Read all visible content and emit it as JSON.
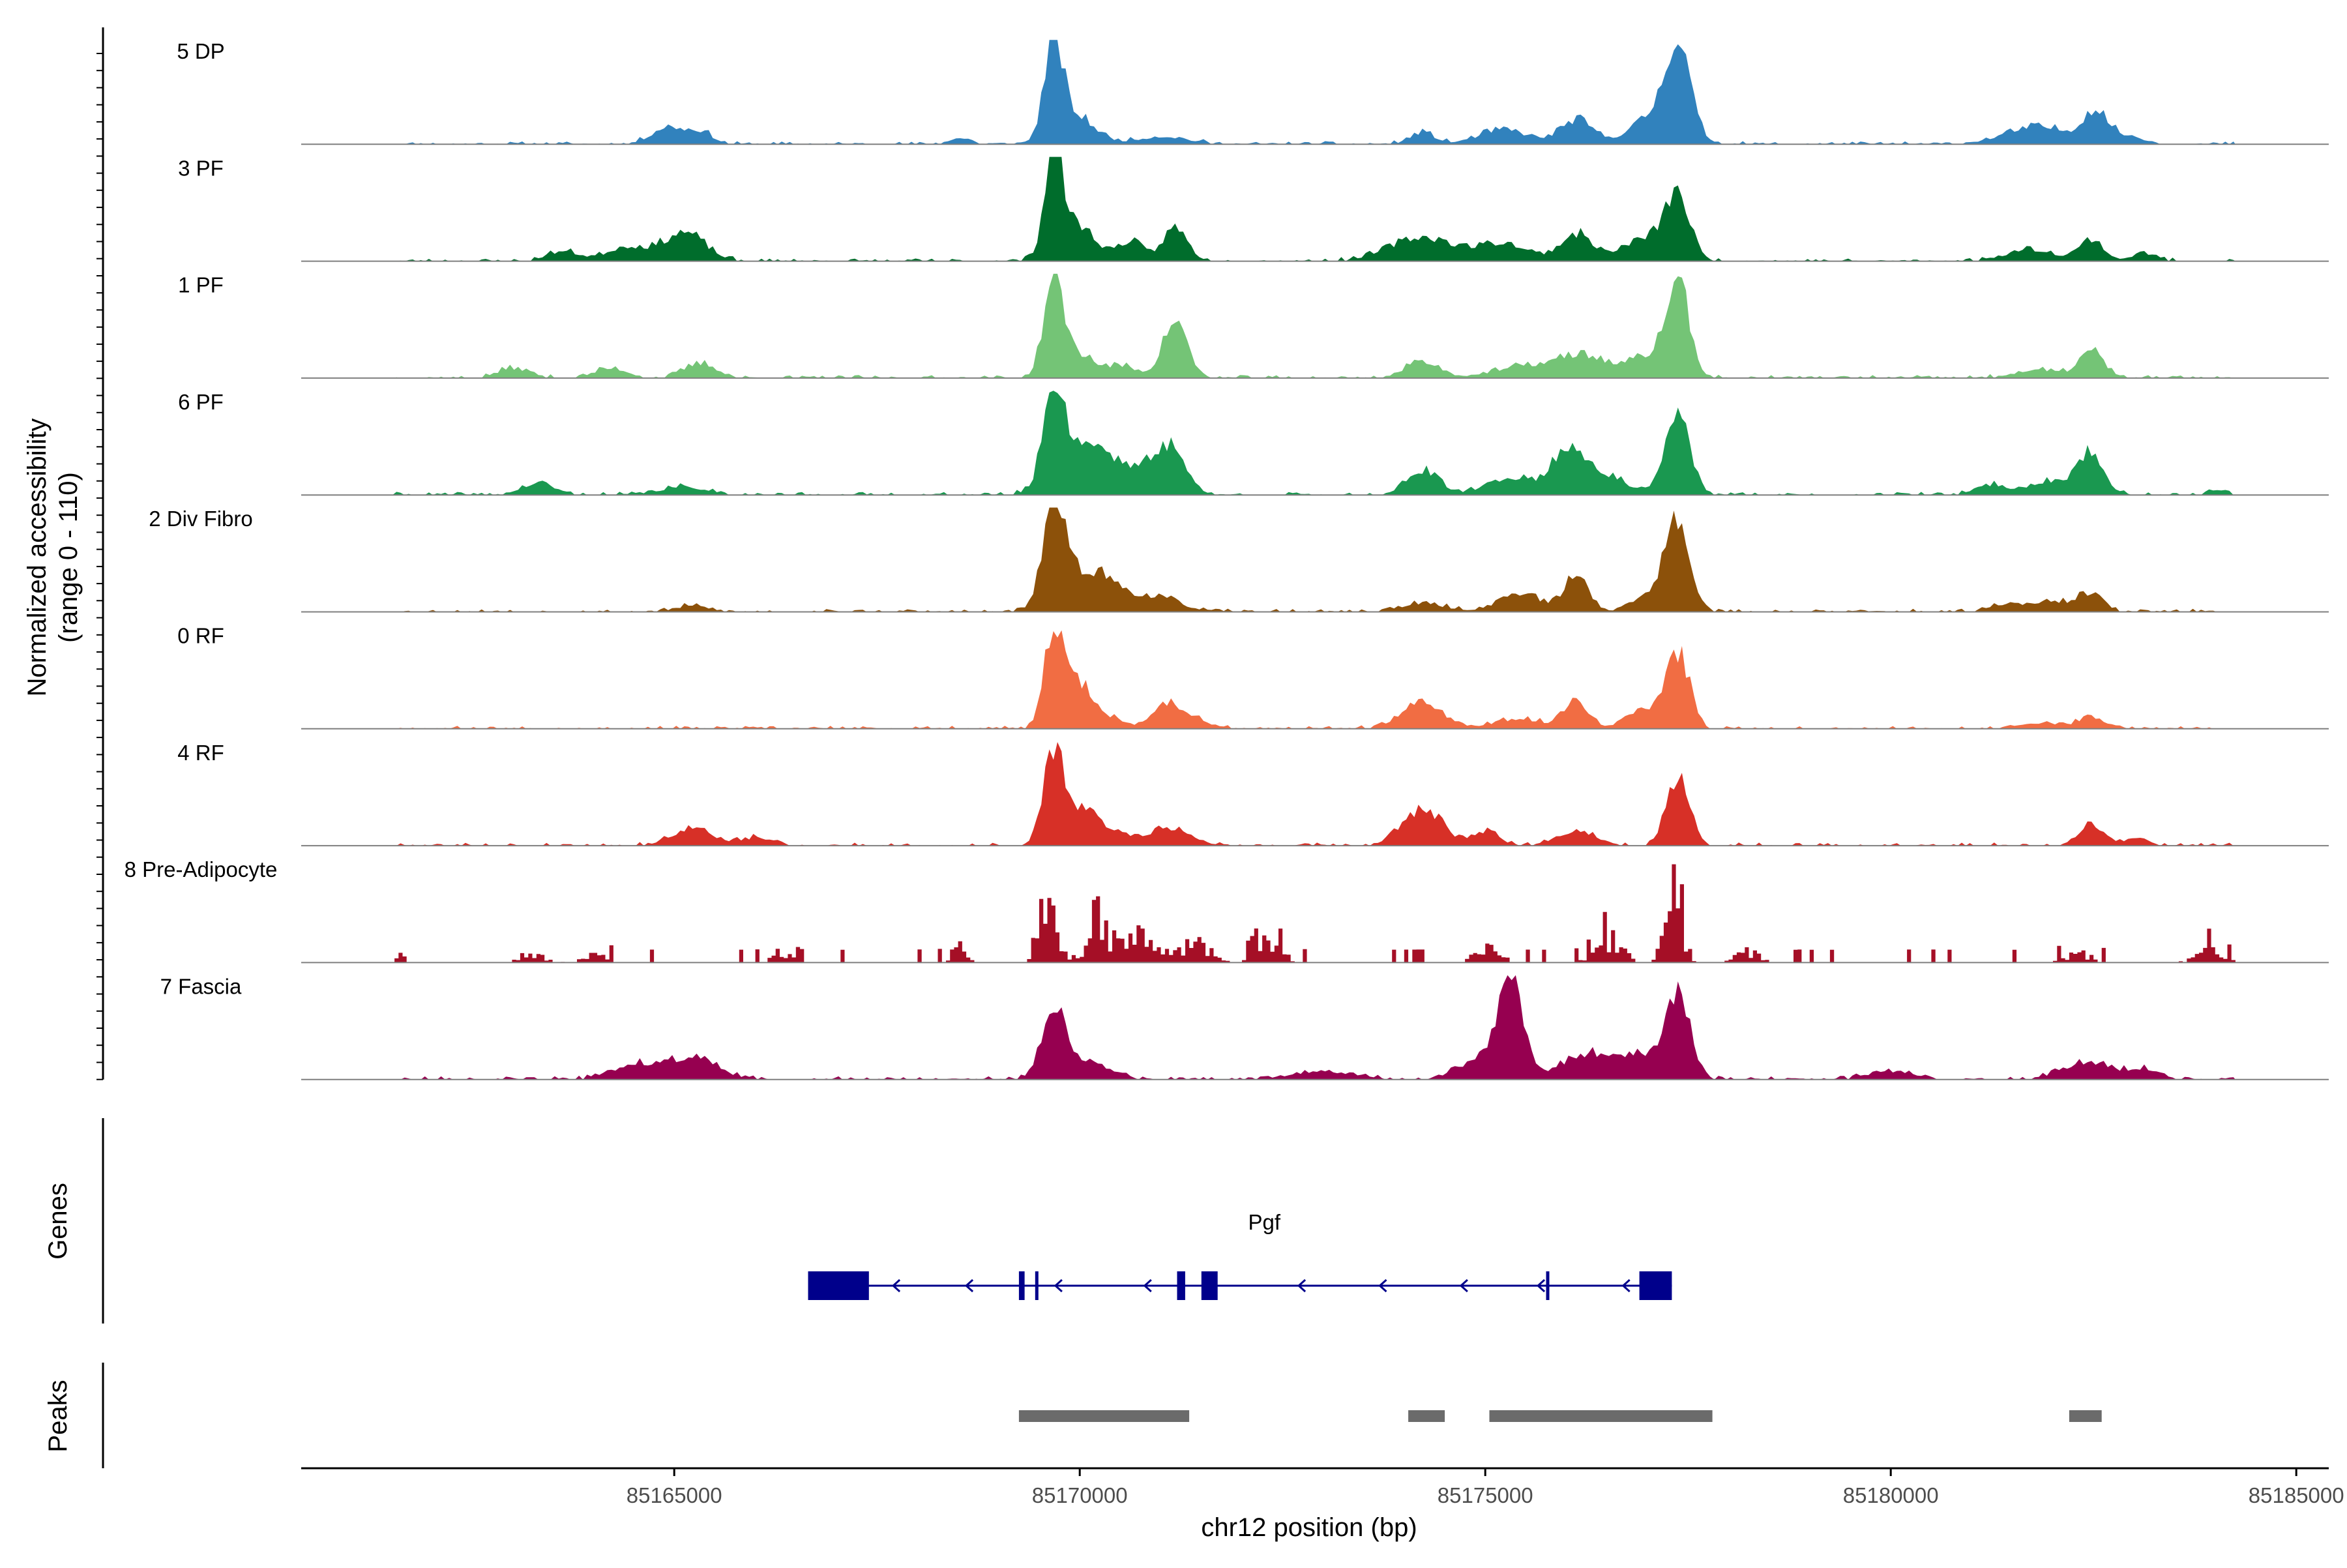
{
  "chart_data": {
    "type": "area",
    "title": "",
    "ylabel": "Normalized accessibility",
    "ylabel_range": "(range 0 - 110)",
    "ylim": [
      0,
      110
    ],
    "xlabel": "chr12 position (bp)",
    "xlim": [
      85160400,
      85185400
    ],
    "data_xlim": [
      85161500,
      85184200
    ],
    "xticks": [
      85165000,
      85170000,
      85175000,
      85180000,
      85185000
    ],
    "xtick_labels": [
      "85165000",
      "85170000",
      "85175000",
      "85180000",
      "85185000"
    ],
    "bin_size_bp": 50,
    "noise_level": 0.05,
    "tracks": [
      {
        "name": "5 DP",
        "color": "#3182BD",
        "jitter": 0.3,
        "spiky": false,
        "seed": 11,
        "peaks": [
          [
            85169650,
            100,
            110
          ],
          [
            85169900,
            30,
            250
          ],
          [
            85177350,
            90,
            150
          ],
          [
            85177100,
            30,
            300
          ],
          [
            85176100,
            25,
            200
          ],
          [
            85175200,
            15,
            300
          ],
          [
            85164900,
            18,
            200
          ],
          [
            85165300,
            12,
            150
          ],
          [
            85174200,
            12,
            150
          ],
          [
            85182500,
            32,
            150
          ],
          [
            85181800,
            18,
            400
          ],
          [
            85182900,
            8,
            200
          ],
          [
            85168500,
            6,
            150
          ],
          [
            85171000,
            8,
            300
          ]
        ]
      },
      {
        "name": "3 PF",
        "color": "#006D2C",
        "jitter": 0.3,
        "spiky": false,
        "seed": 23,
        "peaks": [
          [
            85169650,
            110,
            100
          ],
          [
            85169900,
            40,
            250
          ],
          [
            85170600,
            20,
            150
          ],
          [
            85171150,
            35,
            150
          ],
          [
            85177350,
            62,
            140
          ],
          [
            85177000,
            25,
            300
          ],
          [
            85176100,
            28,
            200
          ],
          [
            85174200,
            25,
            400
          ],
          [
            85175200,
            18,
            300
          ],
          [
            85165100,
            30,
            250
          ],
          [
            85164400,
            15,
            250
          ],
          [
            85163600,
            10,
            200
          ],
          [
            85182450,
            22,
            150
          ],
          [
            85181700,
            12,
            300
          ],
          [
            85183100,
            8,
            150
          ]
        ]
      },
      {
        "name": "1 PF",
        "color": "#74C476",
        "jitter": 0.3,
        "spiky": false,
        "seed": 37,
        "peaks": [
          [
            85169650,
            100,
            120
          ],
          [
            85169950,
            25,
            200
          ],
          [
            85171150,
            60,
            150
          ],
          [
            85170500,
            12,
            200
          ],
          [
            85177350,
            95,
            140
          ],
          [
            85177000,
            22,
            250
          ],
          [
            85176200,
            22,
            300
          ],
          [
            85174200,
            18,
            200
          ],
          [
            85175500,
            12,
            400
          ],
          [
            85165300,
            15,
            200
          ],
          [
            85164200,
            10,
            200
          ],
          [
            85163000,
            10,
            200
          ],
          [
            85182450,
            28,
            150
          ],
          [
            85181800,
            8,
            300
          ]
        ]
      },
      {
        "name": "6 PF",
        "color": "#1A9850",
        "jitter": 0.3,
        "spiky": false,
        "seed": 41,
        "peaks": [
          [
            85169650,
            100,
            120
          ],
          [
            85169950,
            40,
            300
          ],
          [
            85170300,
            25,
            300
          ],
          [
            85170900,
            28,
            250
          ],
          [
            85171150,
            35,
            150
          ],
          [
            85177350,
            85,
            150
          ],
          [
            85176000,
            42,
            200
          ],
          [
            85176400,
            20,
            300
          ],
          [
            85174200,
            25,
            200
          ],
          [
            85175300,
            18,
            300
          ],
          [
            85163300,
            12,
            200
          ],
          [
            85165100,
            8,
            300
          ],
          [
            85182450,
            40,
            150
          ],
          [
            85182000,
            15,
            300
          ],
          [
            85181200,
            10,
            200
          ],
          [
            85184000,
            6,
            100
          ]
        ]
      },
      {
        "name": "2 Div Fibro",
        "color": "#8C510A",
        "jitter": 0.3,
        "spiky": false,
        "seed": 53,
        "peaks": [
          [
            85169650,
            110,
            120
          ],
          [
            85169950,
            35,
            300
          ],
          [
            85170300,
            18,
            250
          ],
          [
            85170900,
            15,
            300
          ],
          [
            85177350,
            95,
            150
          ],
          [
            85176100,
            38,
            150
          ],
          [
            85175400,
            20,
            250
          ],
          [
            85177000,
            18,
            200
          ],
          [
            85174200,
            8,
            300
          ],
          [
            85182450,
            18,
            150
          ],
          [
            85182000,
            10,
            250
          ],
          [
            85181400,
            8,
            200
          ],
          [
            85165200,
            6,
            200
          ]
        ]
      },
      {
        "name": "0 RF",
        "color": "#F16D43",
        "jitter": 0.3,
        "spiky": false,
        "seed": 67,
        "peaks": [
          [
            85169650,
            105,
            110
          ],
          [
            85169950,
            40,
            150
          ],
          [
            85170200,
            15,
            250
          ],
          [
            85171000,
            22,
            150
          ],
          [
            85171300,
            15,
            200
          ],
          [
            85177350,
            80,
            140
          ],
          [
            85176100,
            30,
            150
          ],
          [
            85174200,
            28,
            250
          ],
          [
            85176900,
            20,
            200
          ],
          [
            85175400,
            10,
            300
          ],
          [
            85182450,
            12,
            150
          ],
          [
            85181800,
            6,
            300
          ]
        ]
      },
      {
        "name": "4 RF",
        "color": "#D73027",
        "jitter": 0.3,
        "spiky": false,
        "seed": 79,
        "peaks": [
          [
            85169650,
            95,
            120
          ],
          [
            85169950,
            30,
            200
          ],
          [
            85170300,
            15,
            300
          ],
          [
            85171100,
            18,
            250
          ],
          [
            85177350,
            70,
            140
          ],
          [
            85174200,
            38,
            250
          ],
          [
            85175000,
            15,
            150
          ],
          [
            85176100,
            15,
            250
          ],
          [
            85165200,
            18,
            250
          ],
          [
            85166000,
            8,
            200
          ],
          [
            85182450,
            22,
            150
          ],
          [
            85183000,
            8,
            150
          ]
        ]
      },
      {
        "name": "8 Pre-Adipocyte",
        "color": "#A50F26",
        "jitter": 0.7,
        "spiky": true,
        "seed": 97,
        "peaks": [
          [
            85169600,
            75,
            100
          ],
          [
            85170200,
            45,
            150
          ],
          [
            85170700,
            35,
            200
          ],
          [
            85177300,
            95,
            100
          ],
          [
            85171400,
            25,
            200
          ],
          [
            85172300,
            30,
            150
          ],
          [
            85176500,
            35,
            150
          ],
          [
            85175000,
            20,
            150
          ],
          [
            85178200,
            15,
            150
          ],
          [
            85166300,
            15,
            100
          ],
          [
            85163200,
            12,
            150
          ],
          [
            85164000,
            10,
            150
          ],
          [
            85168500,
            20,
            100
          ],
          [
            85182300,
            12,
            150
          ],
          [
            85183900,
            18,
            150
          ],
          [
            85161600,
            20,
            50
          ]
        ]
      },
      {
        "name": "7 Fascia",
        "color": "#960050",
        "jitter": 0.3,
        "spiky": false,
        "seed": 113,
        "peaks": [
          [
            85169650,
            72,
            140
          ],
          [
            85170000,
            20,
            300
          ],
          [
            85175300,
            100,
            140
          ],
          [
            85175000,
            25,
            300
          ],
          [
            85177350,
            82,
            150
          ],
          [
            85176900,
            25,
            300
          ],
          [
            85176200,
            25,
            300
          ],
          [
            85165200,
            22,
            300
          ],
          [
            85164500,
            15,
            300
          ],
          [
            85182400,
            18,
            300
          ],
          [
            85183100,
            10,
            200
          ],
          [
            85173000,
            8,
            400
          ],
          [
            85180000,
            8,
            300
          ]
        ]
      }
    ],
    "genes": {
      "panel_label": "Genes",
      "name": "Pgf",
      "strand": "-",
      "start": 85166650,
      "end": 85177300,
      "exons": [
        [
          85166650,
          85167400
        ],
        [
          85169250,
          85169320
        ],
        [
          85169450,
          85169480
        ],
        [
          85171200,
          85171300
        ],
        [
          85171500,
          85171700
        ],
        [
          85175750,
          85175780
        ],
        [
          85176900,
          85177300
        ]
      ],
      "arrow_positions": [
        85167700,
        85168600,
        85169700,
        85170800,
        85172700,
        85173700,
        85174700,
        85175650,
        85176700
      ],
      "color": "#00008B"
    },
    "peaks_track": {
      "panel_label": "Peaks",
      "regions": [
        [
          85169250,
          85171350
        ],
        [
          85174050,
          85174500
        ],
        [
          85175050,
          85177800
        ],
        [
          85182200,
          85182600
        ]
      ],
      "color": "#6B6B6B"
    }
  }
}
